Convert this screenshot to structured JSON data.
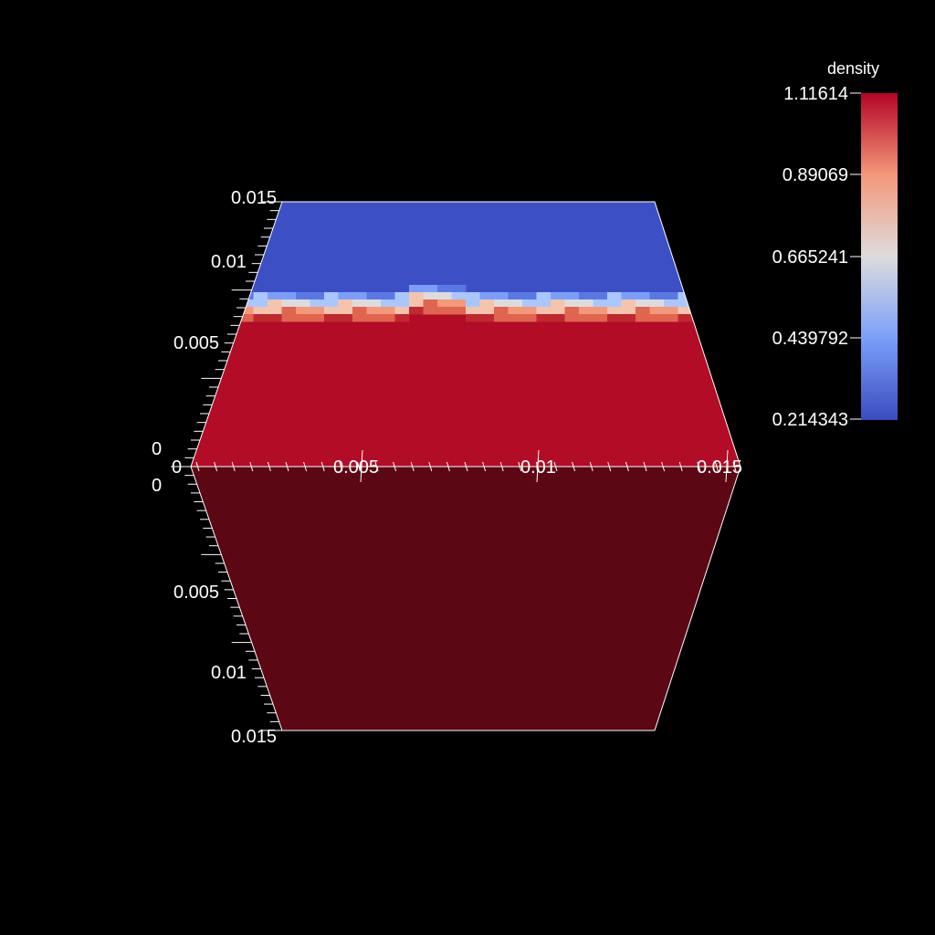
{
  "scalar_bar": {
    "title": "density",
    "max_label": "1.11614",
    "label_2": "0.89069",
    "label_3": "0.665241",
    "label_4": "0.439792",
    "min_label": "0.214343",
    "colors": {
      "low": "#3b4cc0",
      "mid": "#dddddd",
      "high": "#b40426"
    }
  },
  "axes": {
    "vertical_upper": {
      "labels": [
        "0",
        "0.005",
        "0.01",
        "0.015"
      ]
    },
    "horizontal": {
      "labels": [
        "0",
        "0.005",
        "0.01",
        "0.015"
      ]
    },
    "vertical_lower": {
      "labels": [
        "0",
        "0.005",
        "0.01",
        "0.015"
      ]
    }
  },
  "render": {
    "top_color": "#3d4fc5",
    "bottom_color": "#b20c27",
    "lower_face_color": "#5c0714"
  }
}
